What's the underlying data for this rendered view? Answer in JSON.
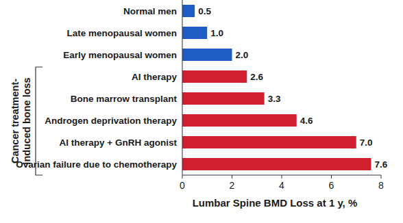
{
  "chart_data": {
    "type": "bar",
    "orientation": "horizontal",
    "categories": [
      "Normal men",
      "Late menopausal women",
      "Early menopausal women",
      "AI therapy",
      "Bone marrow transplant",
      "Androgen deprivation therapy",
      "AI therapy + GnRH agonist",
      "Ovarian failure due to chemotherapy"
    ],
    "values": [
      0.5,
      1.0,
      2.0,
      2.6,
      3.3,
      4.6,
      7.0,
      7.6
    ],
    "value_labels": [
      "0.5",
      "1.0",
      "2.0",
      "2.6",
      "3.3",
      "4.6",
      "7.0",
      "7.6"
    ],
    "colors": [
      "#1f5cc4",
      "#1f5cc4",
      "#1f5cc4",
      "#d1202f",
      "#d1202f",
      "#d1202f",
      "#d1202f",
      "#d1202f"
    ],
    "x_label": "Lumbar Spine BMD Loss at 1 y, %",
    "xlim": [
      0,
      8
    ],
    "xticks": [
      0,
      2,
      4,
      6,
      8
    ],
    "grid": false,
    "data_labels": true,
    "annotations": [
      "Cancer treatment-",
      "induced bone loss"
    ]
  }
}
